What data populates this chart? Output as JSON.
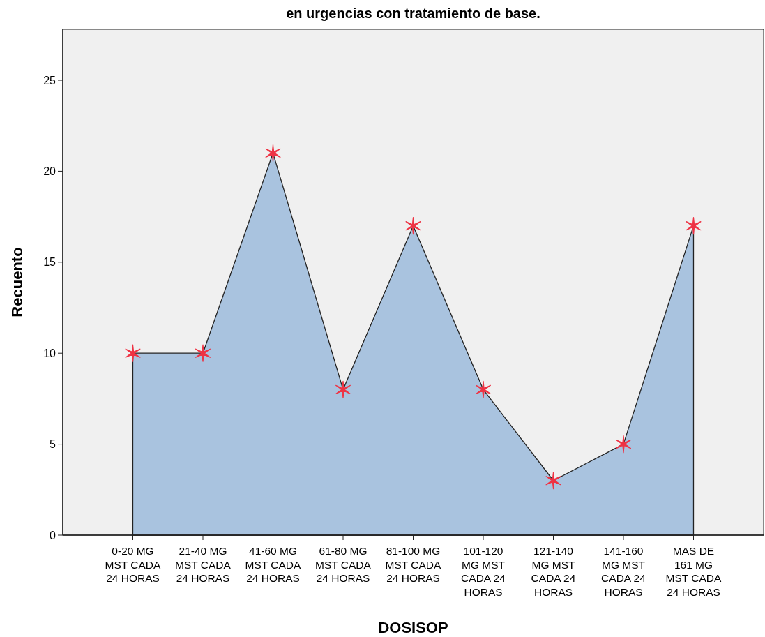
{
  "chart_data": {
    "type": "area",
    "title": "en urgencias con tratamiento de base.",
    "xlabel": "DOSISOP",
    "ylabel": "Recuento",
    "categories": [
      "0-20 MG MST CADA 24 HORAS",
      "21-40 MG MST CADA 24 HORAS",
      "41-60 MG MST CADA 24 HORAS",
      "61-80 MG MST CADA 24 HORAS",
      "81-100 MG MST CADA 24 HORAS",
      "101-120 MG MST CADA 24 HORAS",
      "121-140 MG MST CADA 24 HORAS",
      "141-160 MG MST CADA 24 HORAS",
      "MAS DE 161 MG MST CADA 24 HORAS"
    ],
    "series": [
      {
        "color": "#a9c3df",
        "values": [
          10,
          10,
          21,
          8,
          17,
          8,
          3,
          5,
          17
        ]
      },
      {
        "type": "scatter",
        "color": "#ee3344",
        "marker": "cross",
        "values": [
          10,
          10,
          21,
          8,
          17,
          8,
          3,
          5,
          17
        ]
      }
    ],
    "ylim": [
      0,
      27.8
    ],
    "yticks": [
      0,
      5,
      10,
      15,
      20,
      25
    ],
    "grid": false
  }
}
